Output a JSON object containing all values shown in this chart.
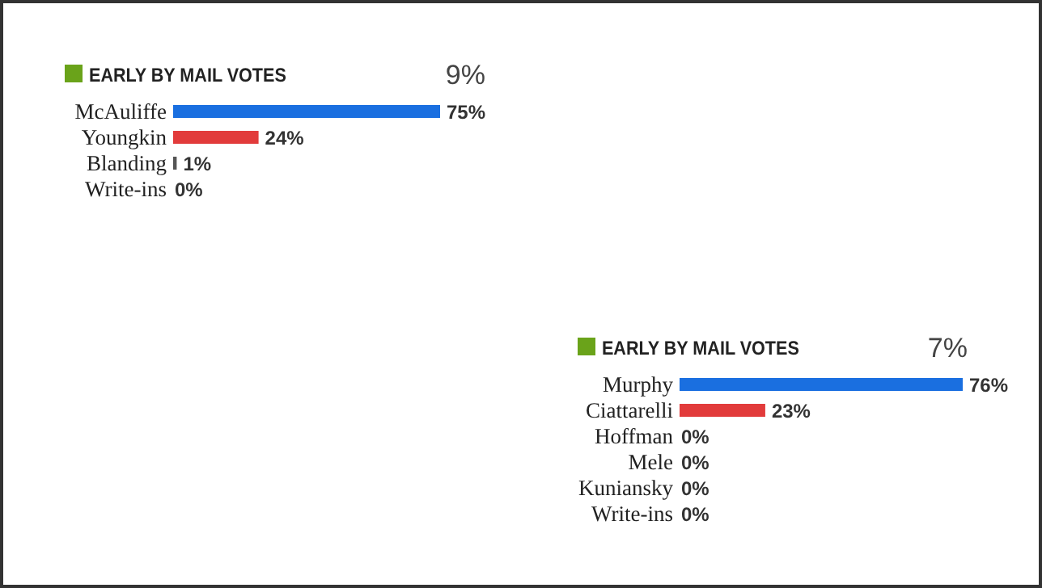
{
  "chart_data": [
    {
      "type": "bar",
      "orientation": "horizontal",
      "title": "EARLY BY MAIL VOTES",
      "subtitle": "9%",
      "categories": [
        "McAuliffe",
        "Youngkin",
        "Blanding",
        "Write-ins"
      ],
      "values": [
        75,
        24,
        1,
        0
      ],
      "colors": [
        "#1a6fe0",
        "#e23b3b",
        "#555555",
        null
      ],
      "value_labels": [
        "75%",
        "24%",
        "1%",
        "0%"
      ]
    },
    {
      "type": "bar",
      "orientation": "horizontal",
      "title": "EARLY BY MAIL VOTES",
      "subtitle": "7%",
      "categories": [
        "Murphy",
        "Ciattarelli",
        "Hoffman",
        "Mele",
        "Kuniansky",
        "Write-ins"
      ],
      "values": [
        76,
        23,
        0,
        0,
        0,
        0
      ],
      "colors": [
        "#1a6fe0",
        "#e23b3b",
        null,
        null,
        null,
        null
      ],
      "value_labels": [
        "76%",
        "23%",
        "0%",
        "0%",
        "0%",
        "0%"
      ]
    }
  ]
}
